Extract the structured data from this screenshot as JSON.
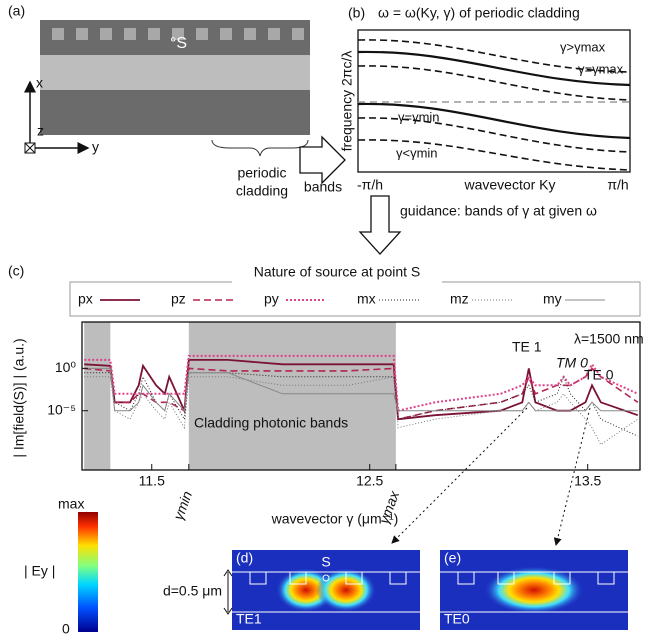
{
  "panel_a": {
    "label": "(a)",
    "source": "°S",
    "axes": {
      "x": "x",
      "y": "y",
      "z": "z"
    },
    "cladding_label": [
      "periodic",
      "cladding"
    ],
    "arrow_label": "bands"
  },
  "panel_b": {
    "label": "(b)",
    "title": "ω = ω(Ky, γ) of periodic cladding",
    "y_label": "frequency 2πc/λ",
    "x_labels": [
      "-π/h",
      "wavevector Ky",
      "π/h"
    ],
    "curve_labels": [
      "γ>γmax",
      "γ=γmax",
      "γ=γmin",
      "γ<γmin"
    ]
  },
  "guidance": "guidance: bands of γ at given ω",
  "chart_data": {
    "type": "line",
    "panel_label": "(c)",
    "legend_title": "Nature of source at point S",
    "y_label": "| Im[field(S)] | (a.u.)",
    "x_label": "wavevector γ (μm⁻¹)",
    "annotations": [
      "λ=1500 nm",
      "TE 1",
      "TM 0",
      "TE 0",
      "Cladding photonic bands"
    ],
    "shaded_regions": [
      [
        11.19,
        11.31
      ],
      [
        11.67,
        12.62
      ]
    ],
    "gamma_marks": [
      {
        "value": 11.67,
        "label": "γmin"
      },
      {
        "value": 12.62,
        "label": "γmax"
      }
    ],
    "log_y": true,
    "xlim": [
      11.18,
      13.74
    ],
    "xticks": [
      11.5,
      12.5,
      13.5
    ],
    "ylim": [
      1e-12,
      300000
    ],
    "yticks": [
      {
        "value": 1,
        "label": "10⁰"
      },
      {
        "value": 1e-05,
        "label": "10⁻⁵"
      }
    ],
    "x": [
      11.19,
      11.31,
      11.33,
      11.4,
      11.44,
      11.46,
      11.52,
      11.56,
      11.58,
      11.65,
      11.67,
      11.85,
      12.1,
      12.4,
      12.61,
      12.63,
      12.8,
      13.1,
      13.2,
      13.23,
      13.26,
      13.36,
      13.39,
      13.42,
      13.49,
      13.52,
      13.56,
      13.73
    ],
    "series": [
      {
        "name": "px",
        "color": "#7b1234",
        "dash": "solid",
        "values": [
          3,
          2,
          0.0001,
          0.0001,
          0.01,
          2,
          0.01,
          0.001,
          0.1,
          1e-05,
          10,
          10,
          3,
          3,
          3,
          1e-06,
          3e-06,
          1e-05,
          0.0001,
          1,
          0.0001,
          1e-05,
          1e-05,
          1e-05,
          0.0001,
          0.01,
          0.0001,
          3e-06
        ]
      },
      {
        "name": "pz",
        "color": "#b3264f",
        "dash": "dashed",
        "values": [
          1,
          0.5,
          0.0001,
          0.0001,
          0.001,
          0.001,
          0.0001,
          0.0001,
          0.0001,
          1e-05,
          1,
          0.5,
          0.5,
          0.5,
          1,
          1e-06,
          1e-05,
          0.0001,
          0.001,
          0.1,
          0.001,
          0.01,
          0.01,
          0.01,
          0.1,
          1,
          0.1,
          0.0001
        ]
      },
      {
        "name": "py",
        "color": "#e0418a",
        "dash": "dotted",
        "values": [
          10,
          10,
          0.001,
          0.001,
          0.001,
          0.001,
          0.001,
          0.001,
          0.001,
          0.001,
          30,
          30,
          30,
          30,
          30,
          1e-05,
          0.0001,
          0.001,
          0.01,
          0.1,
          0.01,
          0.01,
          0.1,
          0.01,
          0.1,
          3,
          0.1,
          0.001
        ]
      },
      {
        "name": "mx",
        "color": "#222222",
        "dash": "fine-dotted",
        "values": [
          0.3,
          0.3,
          0.0001,
          1e-05,
          0.001,
          0.1,
          0.0001,
          1e-05,
          0.001,
          1e-06,
          0.3,
          0.3,
          0.1,
          0.1,
          0.1,
          1e-06,
          1e-05,
          0.0001,
          0.001,
          0.01,
          0.0001,
          0.001,
          0.1,
          0.001,
          1e-05,
          0.0001,
          1e-06,
          1e-08
        ]
      },
      {
        "name": "mz",
        "color": "#777777",
        "dash": "fine-dotted",
        "values": [
          0.1,
          0.1,
          1e-05,
          1e-06,
          0.0001,
          0.001,
          1e-05,
          1e-06,
          0.0001,
          1e-07,
          0.1,
          0.1,
          0.01,
          0.01,
          0.1,
          1e-07,
          1e-06,
          1e-05,
          1e-05,
          0.0001,
          1e-05,
          0.0001,
          0.001,
          0.0001,
          1e-06,
          1e-07,
          1e-09,
          1e-06
        ]
      },
      {
        "name": "my",
        "color": "#888888",
        "dash": "solid",
        "values": [
          1,
          1,
          1e-05,
          1e-05,
          0.0001,
          0.01,
          0.0001,
          1e-05,
          0.001,
          1e-05,
          0.3,
          0.3,
          0.001,
          0.001,
          0.001,
          1e-05,
          1e-05,
          1e-05,
          1e-05,
          0.0001,
          1e-05,
          1e-05,
          1e-05,
          1e-05,
          1e-05,
          0.0001,
          1e-05,
          1e-05
        ]
      }
    ]
  },
  "colorbar": {
    "max": "max",
    "label": "| Ey |",
    "min": "0"
  },
  "panel_d": {
    "label": "(d)",
    "source": "S",
    "thickness": "d=0.5 μm",
    "mode": "TE1"
  },
  "panel_e": {
    "label": "(e)",
    "mode": "TE0"
  }
}
